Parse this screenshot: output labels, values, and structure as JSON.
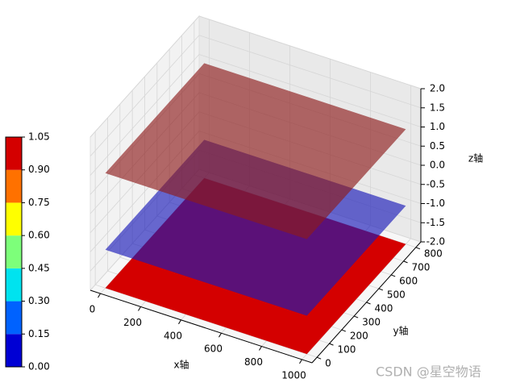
{
  "chart_data": {
    "type": "surface3d",
    "xlabel": "x轴",
    "ylabel": "y轴",
    "zlabel": "z轴",
    "xlim": [
      -50,
      1050
    ],
    "ylim": [
      -40,
      840
    ],
    "zlim": [
      -2,
      2
    ],
    "xticks": [
      0,
      200,
      400,
      600,
      800,
      1000
    ],
    "yticks": [
      0,
      100,
      200,
      300,
      400,
      500,
      600,
      700,
      800
    ],
    "zticks": [
      {
        "value": -2,
        "label": "-2.0"
      },
      -1.5,
      {
        "value": -1,
        "label": "-1.0"
      },
      -0.5,
      {
        "value": 0,
        "label": "0.0"
      },
      0.5,
      {
        "value": 1,
        "label": "1.0"
      },
      1.5,
      {
        "value": 2,
        "label": "2.0"
      }
    ],
    "extent": {
      "x": [
        0,
        1000
      ],
      "y": [
        0,
        800
      ]
    },
    "planes": [
      {
        "z": -2,
        "color": "#d40000"
      },
      {
        "z": -1,
        "color": "#1a1ab8"
      },
      {
        "z": 1,
        "color": "#8e1c1c"
      }
    ],
    "colorbar": {
      "ticks": [
        {
          "value": 0,
          "label": "0.00"
        },
        {
          "value": 0.15,
          "label": "0.15"
        },
        {
          "value": 0.3,
          "label": "0.30"
        },
        {
          "value": 0.45,
          "label": "0.45"
        },
        {
          "value": 0.6,
          "label": "0.60"
        },
        {
          "value": 0.75,
          "label": "0.75"
        },
        {
          "value": 0.9,
          "label": "0.90"
        },
        {
          "value": 1.05,
          "label": "1.05"
        }
      ],
      "colors": [
        "#0000d4",
        "#0062ff",
        "#00e3ef",
        "#7dff7a",
        "#ffff00",
        "#ff7100",
        "#d40000"
      ]
    },
    "watermark": "CSDN @星空物语"
  }
}
